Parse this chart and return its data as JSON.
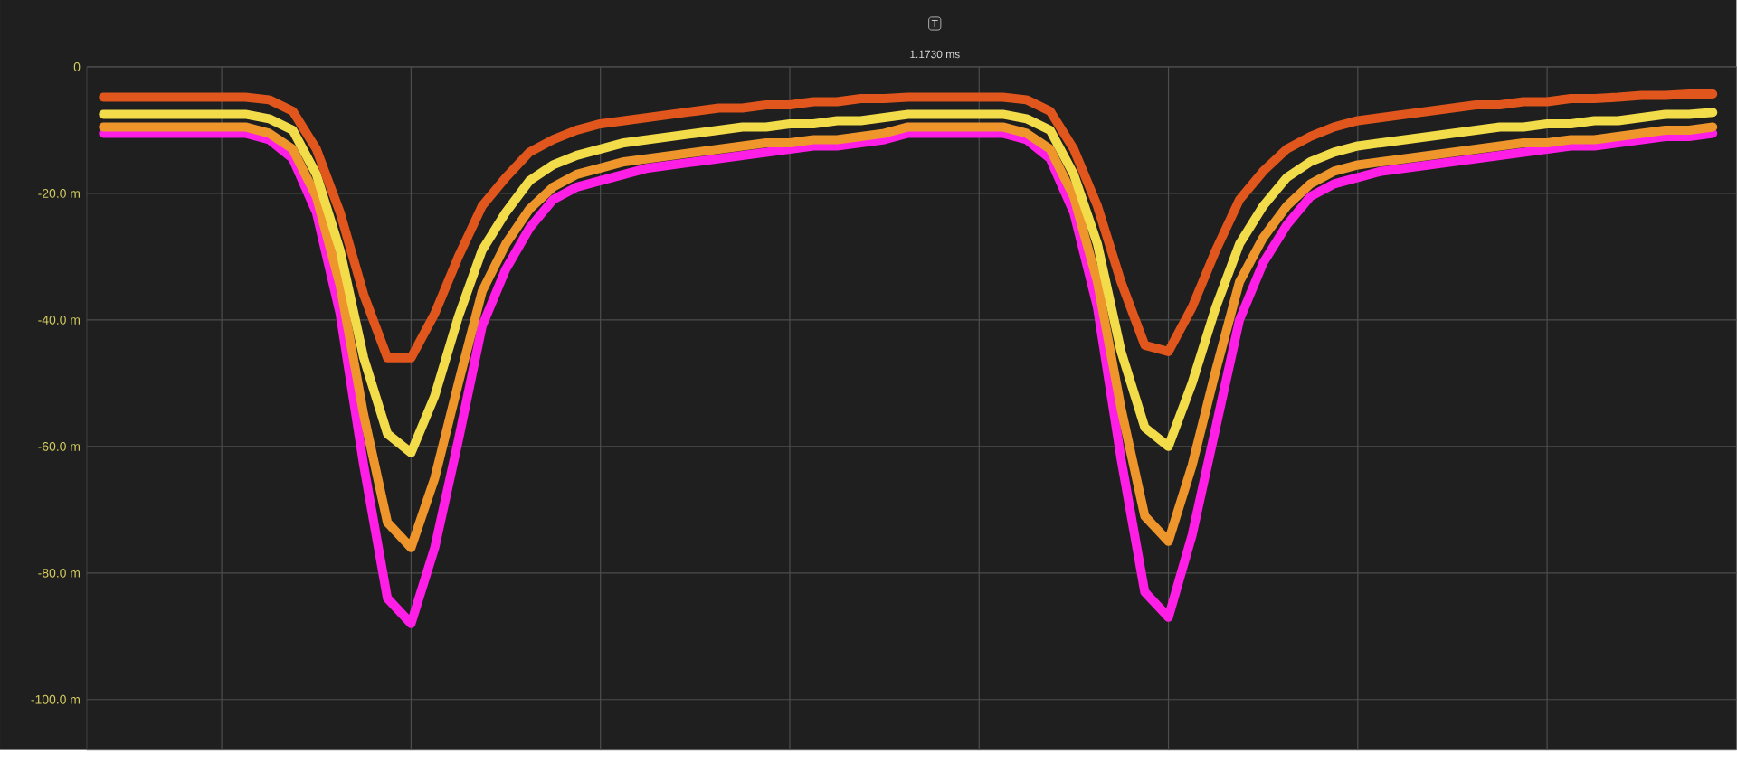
{
  "chart_data": {
    "type": "line",
    "categories": [
      null,
      null,
      null,
      null,
      null,
      null,
      null,
      null,
      null,
      null,
      null,
      null,
      null,
      null,
      null,
      null,
      null,
      null,
      null,
      null,
      null,
      null,
      null,
      null,
      null,
      null,
      null,
      null,
      null,
      null,
      null,
      null,
      null,
      null,
      null,
      null,
      null,
      null,
      null,
      null,
      null,
      null,
      null,
      null,
      null,
      null,
      null,
      null,
      null,
      null,
      null,
      null,
      null,
      null,
      null,
      null,
      null,
      null,
      null,
      null,
      null,
      null,
      null,
      null,
      null,
      null,
      null,
      null,
      null
    ],
    "series": [
      {
        "color": "#ff1ee6",
        "values": [
          -10.5,
          -10.5,
          -10.5,
          -10.5,
          -10.5,
          -10.5,
          -10.5,
          -11.5,
          -14.5,
          -23,
          -39,
          -63,
          -84,
          -88,
          -76,
          -59,
          -41,
          -32,
          -25.5,
          -21,
          -19,
          -18,
          -17,
          -16,
          -15.5,
          -15,
          -14.5,
          -14,
          -13.5,
          -13,
          -12.5,
          -12.5,
          -12,
          -11.5,
          -10.5,
          -10.5,
          -10.5,
          -10.5,
          -10.5,
          -11.5,
          -14.5,
          -23,
          -38,
          -62,
          -83,
          -87,
          -74,
          -57,
          -40,
          -31,
          -25,
          -20.5,
          -18.5,
          -17.5,
          -16.5,
          -16,
          -15.5,
          -15,
          -14.5,
          -14,
          -13.5,
          -13,
          -12.5,
          -12.5,
          -12,
          -11.5,
          -11,
          -11,
          -10.5
        ]
      },
      {
        "color": "#ee962c",
        "values": [
          -9.5,
          -9.5,
          -9.5,
          -9.5,
          -9.5,
          -9.5,
          -9.5,
          -10.5,
          -13,
          -20.5,
          -34.5,
          -55,
          -72,
          -76,
          -65,
          -50,
          -35.5,
          -28,
          -22.5,
          -19,
          -17,
          -16,
          -15,
          -14.5,
          -14,
          -13.5,
          -13,
          -12.5,
          -12,
          -12,
          -11.5,
          -11.5,
          -11,
          -10.5,
          -9.5,
          -9.5,
          -9.5,
          -9.5,
          -9.5,
          -10.5,
          -13,
          -20.5,
          -34,
          -54,
          -71,
          -75,
          -63,
          -48,
          -34,
          -27,
          -22,
          -18.5,
          -16.5,
          -15.5,
          -15,
          -14.5,
          -14,
          -13.5,
          -13,
          -12.5,
          -12,
          -12,
          -11.5,
          -11.5,
          -11,
          -10.5,
          -10,
          -10,
          -9.5
        ]
      },
      {
        "color": "#f2dc4a",
        "values": [
          -7.5,
          -7.5,
          -7.5,
          -7.5,
          -7.5,
          -7.5,
          -7.5,
          -8.2,
          -10,
          -17,
          -29,
          -46,
          -58,
          -61,
          -52,
          -39.5,
          -29,
          -23,
          -18,
          -15.5,
          -14,
          -13,
          -12,
          -11.5,
          -11,
          -10.5,
          -10,
          -9.5,
          -9.5,
          -9,
          -9,
          -8.5,
          -8.5,
          -8,
          -7.5,
          -7.5,
          -7.5,
          -7.5,
          -7.5,
          -8.2,
          -10,
          -17,
          -28,
          -45,
          -57,
          -60,
          -50,
          -38,
          -28,
          -22,
          -17.5,
          -15,
          -13.5,
          -12.5,
          -12,
          -11.5,
          -11,
          -10.5,
          -10,
          -9.5,
          -9.5,
          -9,
          -9,
          -8.5,
          -8.5,
          -8,
          -7.5,
          -7.5,
          -7.2
        ]
      },
      {
        "color": "#e0561c",
        "values": [
          -4.8,
          -4.8,
          -4.8,
          -4.8,
          -4.8,
          -4.8,
          -4.8,
          -5.2,
          -7,
          -13,
          -23,
          -36,
          -46,
          -46,
          -39,
          -30,
          -22,
          -17.5,
          -13.5,
          -11.5,
          -10,
          -9,
          -8.5,
          -8,
          -7.5,
          -7,
          -6.5,
          -6.5,
          -6,
          -6,
          -5.5,
          -5.5,
          -5,
          -5,
          -4.8,
          -4.8,
          -4.8,
          -4.8,
          -4.8,
          -5.2,
          -7,
          -13,
          -22,
          -34,
          -44,
          -45,
          -38,
          -29,
          -21,
          -16.5,
          -13,
          -11,
          -9.5,
          -8.5,
          -8,
          -7.5,
          -7,
          -6.5,
          -6,
          -6,
          -5.5,
          -5.5,
          -5,
          -5,
          -4.8,
          -4.5,
          -4.5,
          -4.3,
          -4.3
        ]
      }
    ],
    "ylim": [
      -108,
      0
    ],
    "yticks": [
      {
        "value": 0,
        "label": "0"
      },
      {
        "value": -20,
        "label": "-20.0 m"
      },
      {
        "value": -40,
        "label": "-40.0 m"
      },
      {
        "value": -60,
        "label": "-60.0 m"
      },
      {
        "value": -80,
        "label": "-80.0 m"
      },
      {
        "value": -100,
        "label": "-100.0 m"
      }
    ],
    "tick_labels": "y",
    "grid": true,
    "annotations": [
      "T",
      "1.1730 ms"
    ]
  }
}
